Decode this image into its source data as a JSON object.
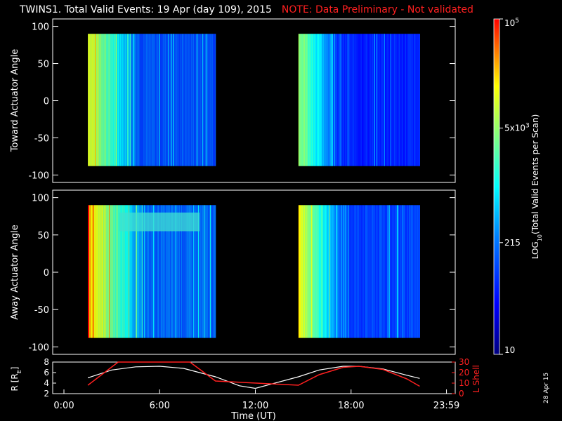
{
  "title": {
    "main": "TWINS1. Total Valid Events: 19 Apr (day 109), 2015",
    "note": "NOTE: Data Preliminary - Not validated"
  },
  "datestamp": "28 Apr 15",
  "colors": {
    "background": "#000000",
    "note": "#ff2020",
    "radius_line": "#ffffff",
    "lshell_line": "#ff2020"
  },
  "chart_data": [
    {
      "type": "heatmap",
      "ylabel": "Toward Actuator Angle",
      "ylim": [
        -110,
        110
      ],
      "yticks": [
        100,
        50,
        0,
        -50,
        -100
      ],
      "y_extent": [
        -88,
        90
      ],
      "x_range_hours": [
        0,
        24
      ],
      "data_blocks_hours": [
        [
          1.5,
          9.5
        ],
        [
          14.7,
          22.3
        ]
      ],
      "pattern": "high counts (yellow/orange) at start of each block, decreasing to low counts (blue) later in block"
    },
    {
      "type": "heatmap",
      "ylabel": "Away Actuator Angle",
      "ylim": [
        -110,
        110
      ],
      "yticks": [
        100,
        50,
        0,
        -50,
        -100
      ],
      "y_extent": [
        -88,
        90
      ],
      "x_range_hours": [
        0,
        24
      ],
      "data_blocks_hours": [
        [
          1.5,
          9.5
        ],
        [
          14.7,
          22.3
        ]
      ],
      "pattern": "high counts (orange/yellow) at start of each block, cyan band near +65 deg from 3:30 to 8:30 UT, low counts (blue) later"
    },
    {
      "type": "line",
      "ylabel_left": "R [RE]",
      "ylabel_right": "L Shell",
      "ylim_left": [
        2,
        8
      ],
      "yticks_left": [
        2,
        4,
        6,
        8
      ],
      "ylim_right": [
        0,
        30
      ],
      "yticks_right": [
        0,
        10,
        20,
        30
      ],
      "xlabel": "Time (UT)",
      "xticks": [
        "0:00",
        "6:00",
        "12:00",
        "18:00",
        "23:59"
      ],
      "series": [
        {
          "name": "R [RE]",
          "x": [
            1.5,
            3,
            4.5,
            6,
            7.5,
            9.5,
            11,
            12,
            14.7,
            16,
            17.5,
            18.5,
            20,
            21.5,
            22.3
          ],
          "values": [
            5.0,
            6.5,
            7.1,
            7.2,
            6.8,
            5.2,
            3.5,
            3.0,
            5.2,
            6.5,
            7.2,
            7.2,
            6.7,
            5.5,
            4.9
          ]
        },
        {
          "name": "L Shell",
          "x": [
            1.5,
            3.4,
            7.9,
            9.5,
            14.7,
            16,
            17.5,
            18.5,
            20,
            21.5,
            22.3
          ],
          "values": [
            8,
            30,
            30,
            12,
            8,
            18,
            25,
            26,
            23,
            14,
            7
          ]
        }
      ]
    },
    {
      "type": "colorbar",
      "label": "LOG10(Total Valid Events per Scan)",
      "tick_labels": [
        "10",
        "215",
        "5x10^3",
        "10^5"
      ],
      "tick_values": [
        10,
        215,
        5000,
        100000
      ],
      "scale": "log",
      "colormap": "rainbow (dark blue low to red high)"
    }
  ]
}
